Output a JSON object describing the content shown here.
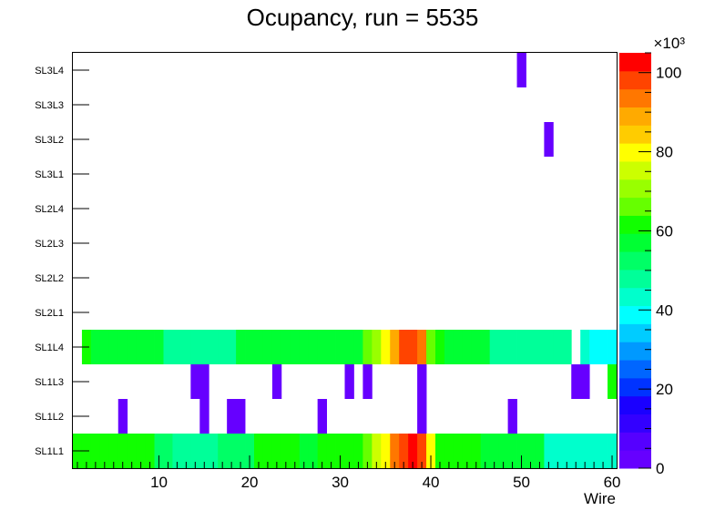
{
  "chart_data": {
    "type": "heatmap",
    "title": "Ocupancy, run = 5535",
    "xlabel": "Wire",
    "ylabel": "",
    "xlim": [
      0.5,
      60.5
    ],
    "x_ticks": [
      10,
      20,
      30,
      40,
      50,
      60
    ],
    "categories": [
      "SL1L1",
      "SL1L2",
      "SL1L3",
      "SL1L4",
      "SL2L1",
      "SL2L2",
      "SL2L3",
      "SL2L4",
      "SL3L1",
      "SL3L2",
      "SL3L3",
      "SL3L4"
    ],
    "colorbar": {
      "min": 0,
      "max": 105000,
      "multiplier_label": "×10³",
      "ticks": [
        0,
        20,
        40,
        60,
        80,
        100
      ],
      "palette": [
        "#6600ff",
        "#5500ff",
        "#3300ff",
        "#1a00ff",
        "#0033ff",
        "#0066ff",
        "#0099ff",
        "#00ccff",
        "#00ffff",
        "#00ffcc",
        "#00ff99",
        "#00ff66",
        "#00ff33",
        "#11ff00",
        "#66ff00",
        "#99ff00",
        "#ccff00",
        "#ffff00",
        "#ffcc00",
        "#ffaa00",
        "#ff7700",
        "#ff4400",
        "#ff0000"
      ]
    },
    "cells": {
      "SL1L1": [
        62000,
        62000,
        62000,
        62000,
        62000,
        62000,
        62000,
        62000,
        62000,
        53000,
        53000,
        50000,
        50000,
        50000,
        50000,
        47000,
        53000,
        53000,
        53000,
        53000,
        62000,
        62000,
        62000,
        62000,
        62000,
        57000,
        57000,
        62000,
        62000,
        62000,
        62000,
        62000,
        68000,
        75000,
        82000,
        92000,
        100000,
        105000,
        100000,
        82000,
        60000,
        60000,
        60000,
        60000,
        60000,
        55000,
        55000,
        55000,
        55000,
        55000,
        55000,
        55000,
        45000,
        45000,
        45000,
        45000,
        45000,
        45000,
        45000,
        45000
      ],
      "SL1L2": [
        0,
        0,
        0,
        0,
        0,
        200,
        0,
        0,
        0,
        0,
        0,
        0,
        0,
        0,
        200,
        0,
        0,
        200,
        200,
        0,
        0,
        0,
        0,
        0,
        0,
        0,
        0,
        200,
        0,
        0,
        0,
        0,
        0,
        0,
        0,
        0,
        0,
        0,
        200,
        0,
        0,
        0,
        0,
        0,
        0,
        0,
        0,
        0,
        200,
        0,
        0,
        0,
        0,
        0,
        0,
        0,
        0,
        0,
        0,
        0
      ],
      "SL1L3": [
        0,
        0,
        0,
        0,
        0,
        0,
        0,
        0,
        0,
        0,
        0,
        0,
        0,
        200,
        200,
        0,
        0,
        0,
        0,
        0,
        0,
        0,
        200,
        0,
        0,
        0,
        0,
        0,
        0,
        0,
        200,
        0,
        200,
        0,
        0,
        0,
        0,
        0,
        200,
        0,
        0,
        0,
        0,
        0,
        0,
        0,
        0,
        0,
        0,
        0,
        0,
        0,
        0,
        0,
        0,
        200,
        200,
        0,
        0,
        60000
      ],
      "SL1L4": [
        0,
        62000,
        57000,
        57000,
        57000,
        57000,
        57000,
        57000,
        57000,
        57000,
        50000,
        50000,
        50000,
        50000,
        50000,
        50000,
        50000,
        50000,
        57000,
        57000,
        57000,
        57000,
        57000,
        57000,
        57000,
        57000,
        57000,
        57000,
        57000,
        57000,
        57000,
        57000,
        65000,
        72000,
        80000,
        90000,
        100000,
        100000,
        92000,
        65000,
        62000,
        57000,
        57000,
        57000,
        57000,
        57000,
        50000,
        50000,
        50000,
        50000,
        50000,
        50000,
        50000,
        50000,
        50000,
        0,
        43000,
        38000,
        38000,
        38000
      ],
      "SL2L1": [
        0,
        0,
        0,
        0,
        0,
        0,
        0,
        0,
        0,
        0,
        0,
        0,
        0,
        0,
        0,
        0,
        0,
        0,
        0,
        0,
        0,
        0,
        0,
        0,
        0,
        0,
        0,
        0,
        0,
        0,
        0,
        0,
        0,
        0,
        0,
        0,
        0,
        0,
        0,
        0,
        0,
        0,
        0,
        0,
        0,
        0,
        0,
        0,
        0,
        0,
        0,
        0,
        0,
        0,
        0,
        0,
        0,
        0,
        0,
        0
      ],
      "SL2L2": [
        0,
        0,
        0,
        0,
        0,
        0,
        0,
        0,
        0,
        0,
        0,
        0,
        0,
        0,
        0,
        0,
        0,
        0,
        0,
        0,
        0,
        0,
        0,
        0,
        0,
        0,
        0,
        0,
        0,
        0,
        0,
        0,
        0,
        0,
        0,
        0,
        0,
        0,
        0,
        0,
        0,
        0,
        0,
        0,
        0,
        0,
        0,
        0,
        0,
        0,
        0,
        0,
        0,
        0,
        0,
        0,
        0,
        0,
        0,
        0
      ],
      "SL2L3": [
        0,
        0,
        0,
        0,
        0,
        0,
        0,
        0,
        0,
        0,
        0,
        0,
        0,
        0,
        0,
        0,
        0,
        0,
        0,
        0,
        0,
        0,
        0,
        0,
        0,
        0,
        0,
        0,
        0,
        0,
        0,
        0,
        0,
        0,
        0,
        0,
        0,
        0,
        0,
        0,
        0,
        0,
        0,
        0,
        0,
        0,
        0,
        0,
        0,
        0,
        0,
        0,
        0,
        0,
        0,
        0,
        0,
        0,
        0,
        0
      ],
      "SL2L4": [
        0,
        0,
        0,
        0,
        0,
        0,
        0,
        0,
        0,
        0,
        0,
        0,
        0,
        0,
        0,
        0,
        0,
        0,
        0,
        0,
        0,
        0,
        0,
        0,
        0,
        0,
        0,
        0,
        0,
        0,
        0,
        0,
        0,
        0,
        0,
        0,
        0,
        0,
        0,
        0,
        0,
        0,
        0,
        0,
        0,
        0,
        0,
        0,
        0,
        0,
        0,
        0,
        0,
        0,
        0,
        0,
        0,
        0,
        0,
        0
      ],
      "SL3L1": [
        0,
        0,
        0,
        0,
        0,
        0,
        0,
        0,
        0,
        0,
        0,
        0,
        0,
        0,
        0,
        0,
        0,
        0,
        0,
        0,
        0,
        0,
        0,
        0,
        0,
        0,
        0,
        0,
        0,
        0,
        0,
        0,
        0,
        0,
        0,
        0,
        0,
        0,
        0,
        0,
        0,
        0,
        0,
        0,
        0,
        0,
        0,
        0,
        0,
        0,
        0,
        0,
        0,
        0,
        0,
        0,
        0,
        0,
        0,
        0
      ],
      "SL3L2": [
        0,
        0,
        0,
        0,
        0,
        0,
        0,
        0,
        0,
        0,
        0,
        0,
        0,
        0,
        0,
        0,
        0,
        0,
        0,
        0,
        0,
        0,
        0,
        0,
        0,
        0,
        0,
        0,
        0,
        0,
        0,
        0,
        0,
        0,
        0,
        0,
        0,
        0,
        0,
        0,
        0,
        0,
        0,
        0,
        0,
        0,
        0,
        0,
        0,
        0,
        0,
        0,
        200,
        0,
        0,
        0,
        0,
        0,
        0,
        0
      ],
      "SL3L3": [
        0,
        0,
        0,
        0,
        0,
        0,
        0,
        0,
        0,
        0,
        0,
        0,
        0,
        0,
        0,
        0,
        0,
        0,
        0,
        0,
        0,
        0,
        0,
        0,
        0,
        0,
        0,
        0,
        0,
        0,
        0,
        0,
        0,
        0,
        0,
        0,
        0,
        0,
        0,
        0,
        0,
        0,
        0,
        0,
        0,
        0,
        0,
        0,
        0,
        0,
        0,
        0,
        0,
        0,
        0,
        0,
        0,
        0,
        0,
        0
      ],
      "SL3L4": [
        0,
        0,
        0,
        0,
        0,
        0,
        0,
        0,
        0,
        0,
        0,
        0,
        0,
        0,
        0,
        0,
        0,
        0,
        0,
        0,
        0,
        0,
        0,
        0,
        0,
        0,
        0,
        0,
        0,
        0,
        0,
        0,
        0,
        0,
        0,
        0,
        0,
        0,
        0,
        0,
        0,
        0,
        0,
        0,
        0,
        0,
        0,
        0,
        0,
        200,
        0,
        0,
        0,
        0,
        0,
        0,
        0,
        0,
        0,
        0
      ]
    }
  }
}
